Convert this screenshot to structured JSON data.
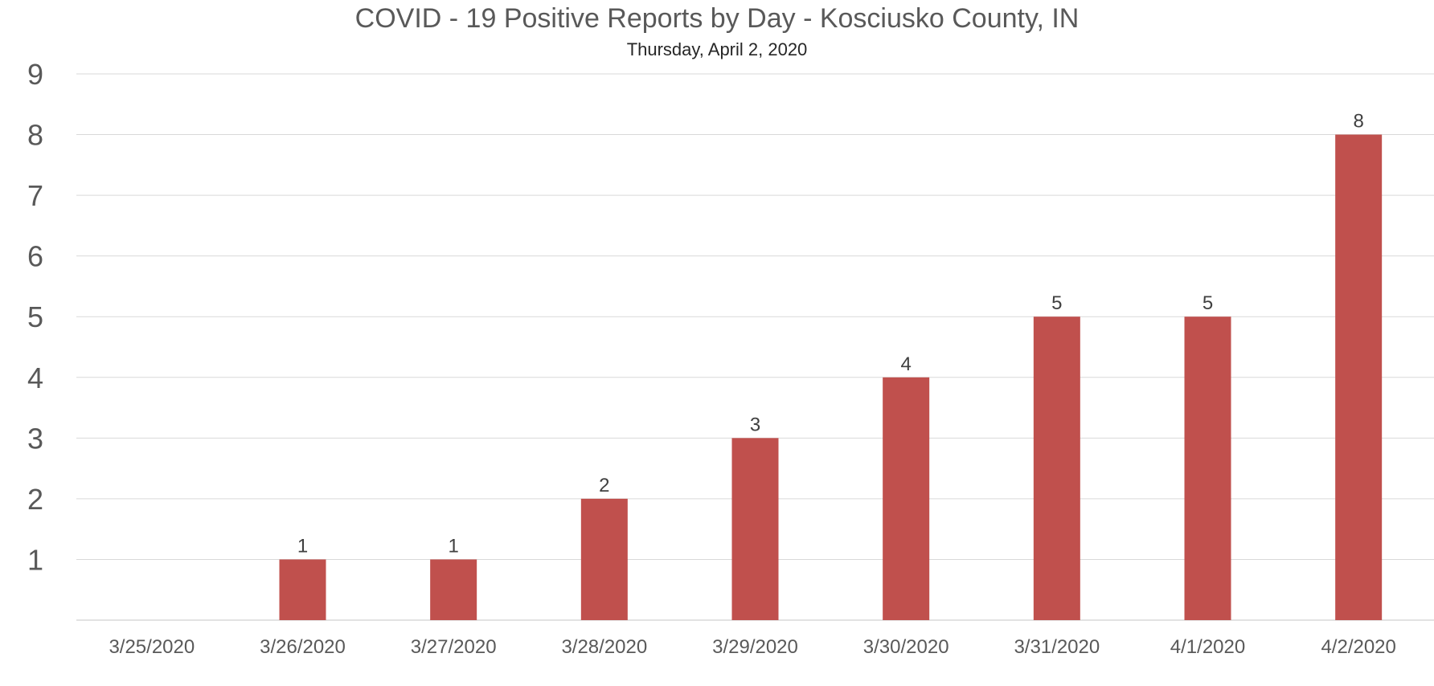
{
  "chart_data": {
    "type": "bar",
    "title": "COVID - 19 Positive Reports by Day - Kosciusko County, IN",
    "subtitle": "Thursday, April 2, 2020",
    "categories": [
      "3/25/2020",
      "3/26/2020",
      "3/27/2020",
      "3/28/2020",
      "3/29/2020",
      "3/30/2020",
      "3/31/2020",
      "4/1/2020",
      "4/2/2020"
    ],
    "values": [
      0,
      1,
      1,
      2,
      3,
      4,
      5,
      5,
      8
    ],
    "yticks": [
      "1",
      "2",
      "3",
      "4",
      "5",
      "6",
      "7",
      "8",
      "9"
    ],
    "ylim": [
      0,
      9
    ],
    "grid": true,
    "data_labels": true,
    "legend": "none",
    "colors": {
      "bar": "#c0504d",
      "grid": "#d9d9d9",
      "text": "#595959"
    }
  }
}
